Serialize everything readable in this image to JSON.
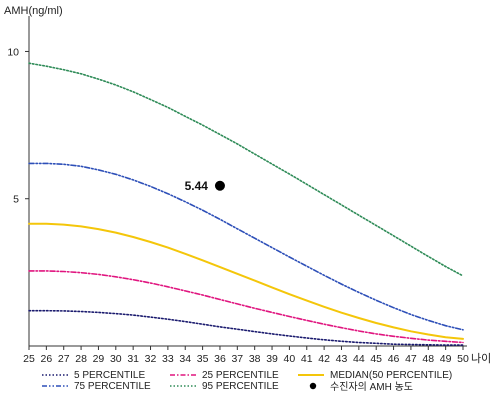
{
  "chart_data": {
    "type": "line",
    "xlabel": "나이",
    "ylabel": "AMH(ng/ml)",
    "x": [
      25,
      26,
      27,
      28,
      29,
      30,
      31,
      32,
      33,
      34,
      35,
      36,
      37,
      38,
      39,
      40,
      41,
      42,
      43,
      44,
      45,
      46,
      47,
      48,
      49,
      50
    ],
    "xlim": [
      25,
      50
    ],
    "ylim": [
      0,
      11
    ],
    "yticks": [
      5,
      10
    ],
    "grid": false,
    "legend_position": "bottom",
    "series": [
      {
        "name": "5 PERCENTILE",
        "color": "#1a1a6e",
        "style": "dotted",
        "values": [
          1.2,
          1.2,
          1.19,
          1.17,
          1.14,
          1.1,
          1.05,
          0.98,
          0.91,
          0.83,
          0.74,
          0.65,
          0.57,
          0.49,
          0.41,
          0.34,
          0.27,
          0.21,
          0.16,
          0.12,
          0.09,
          0.06,
          0.05,
          0.04,
          0.03,
          0.03
        ]
      },
      {
        "name": "25 PERCENTILE",
        "color": "#e0157f",
        "style": "dashdot",
        "values": [
          2.55,
          2.55,
          2.53,
          2.49,
          2.43,
          2.35,
          2.25,
          2.14,
          2.01,
          1.87,
          1.73,
          1.58,
          1.43,
          1.28,
          1.14,
          1.0,
          0.87,
          0.74,
          0.62,
          0.51,
          0.41,
          0.33,
          0.26,
          0.2,
          0.16,
          0.12
        ]
      },
      {
        "name": "MEDIAN(50 PERCENTILE)",
        "color": "#f4c60a",
        "style": "solid",
        "values": [
          4.15,
          4.15,
          4.12,
          4.06,
          3.97,
          3.85,
          3.7,
          3.53,
          3.34,
          3.13,
          2.91,
          2.68,
          2.45,
          2.22,
          1.99,
          1.76,
          1.54,
          1.33,
          1.13,
          0.95,
          0.78,
          0.63,
          0.5,
          0.39,
          0.3,
          0.24
        ]
      },
      {
        "name": "75 PERCENTILE",
        "color": "#2d4fb8",
        "style": "dashdotdot",
        "values": [
          6.2,
          6.2,
          6.17,
          6.1,
          5.98,
          5.83,
          5.64,
          5.42,
          5.17,
          4.9,
          4.61,
          4.3,
          3.98,
          3.66,
          3.34,
          3.02,
          2.71,
          2.4,
          2.1,
          1.82,
          1.55,
          1.3,
          1.07,
          0.87,
          0.69,
          0.55
        ]
      },
      {
        "name": "95 PERCENTILE",
        "color": "#2e8b57",
        "style": "dotted",
        "values": [
          9.6,
          9.5,
          9.38,
          9.24,
          9.06,
          8.86,
          8.63,
          8.37,
          8.1,
          7.8,
          7.5,
          7.18,
          6.86,
          6.52,
          6.18,
          5.84,
          5.49,
          5.14,
          4.79,
          4.44,
          4.09,
          3.74,
          3.39,
          3.04,
          2.7,
          2.38
        ]
      }
    ],
    "patient_point": {
      "label": "수진자의 AMH 농도",
      "x": 36,
      "y": 5.44,
      "value_label": "5.44",
      "color": "#000000"
    }
  }
}
